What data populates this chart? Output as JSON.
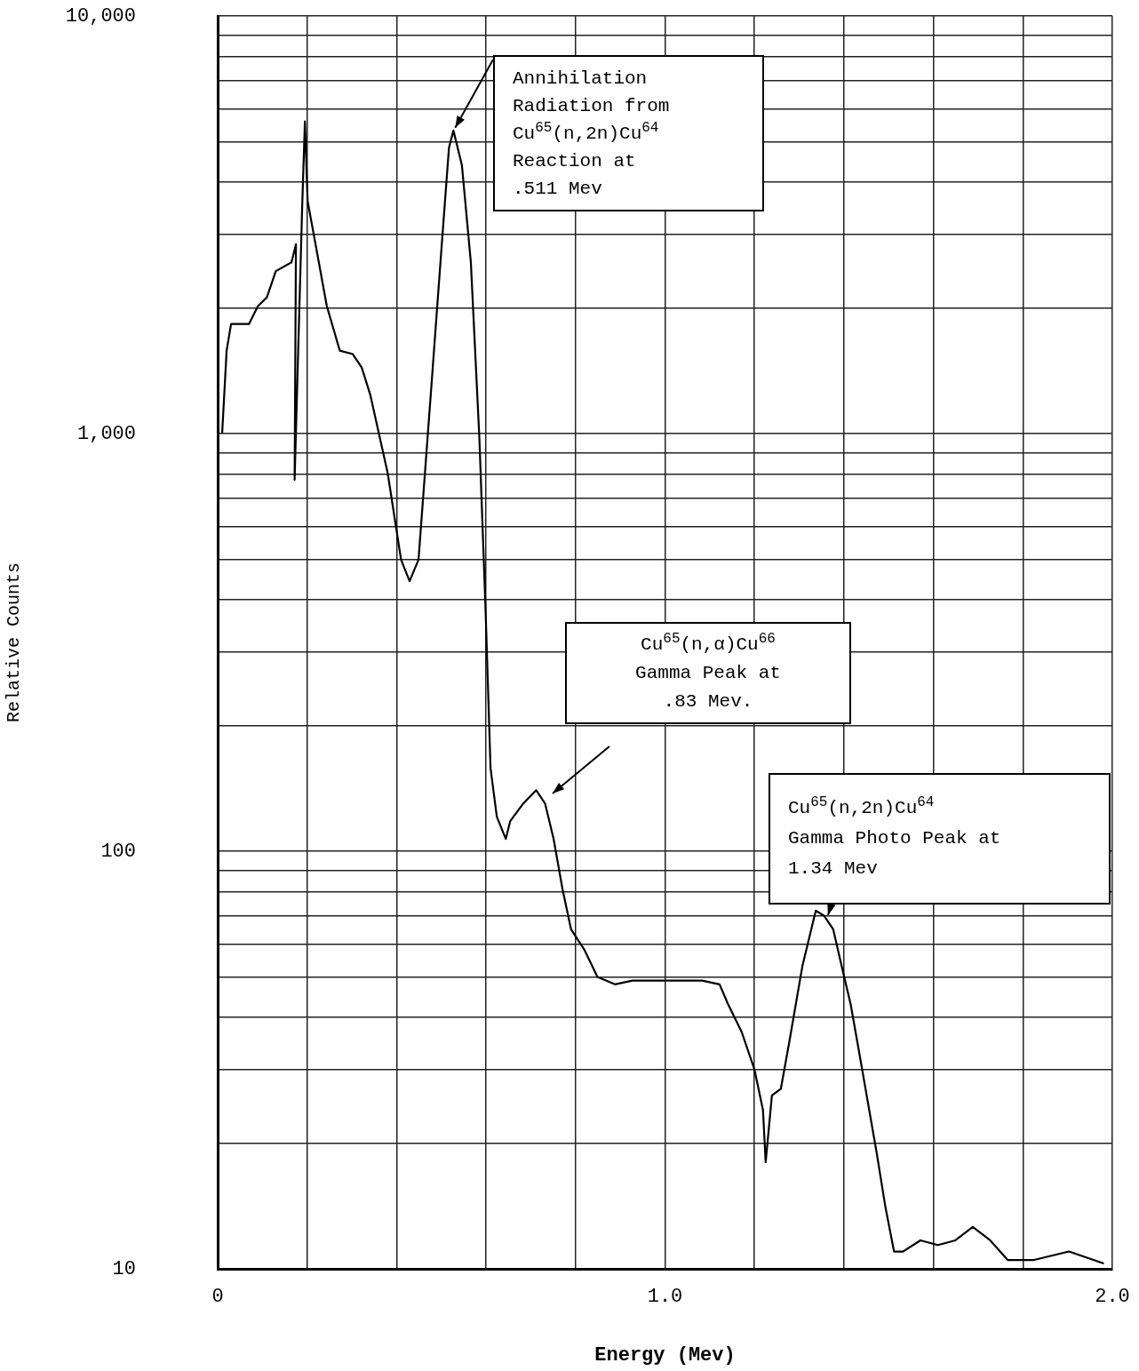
{
  "chart_data": {
    "type": "line",
    "xlabel": "Energy (Mev)",
    "ylabel": "Relative Counts",
    "log": "y",
    "grid": true,
    "marker": "none",
    "line_style": "solid",
    "xlim": [
      0,
      2.0
    ],
    "ylim": [
      10,
      10000
    ],
    "xticks": [
      0,
      {
        "value": 0.2,
        "label": null
      },
      {
        "value": 0.4,
        "label": null
      },
      {
        "value": 0.6,
        "label": null
      },
      {
        "value": 0.8,
        "label": null
      },
      {
        "value": 1.0,
        "label": "1.0"
      },
      {
        "value": 1.2,
        "label": null
      },
      {
        "value": 1.4,
        "label": null
      },
      {
        "value": 1.6,
        "label": null
      },
      {
        "value": 1.8,
        "label": null
      },
      {
        "value": 2.0,
        "label": "2.0"
      }
    ],
    "yticks": [
      10,
      {
        "value": 20,
        "label": null
      },
      {
        "value": 30,
        "label": null
      },
      {
        "value": 40,
        "label": null
      },
      {
        "value": 50,
        "label": null
      },
      {
        "value": 60,
        "label": null
      },
      {
        "value": 70,
        "label": null
      },
      {
        "value": 80,
        "label": null
      },
      {
        "value": 90,
        "label": null
      },
      100,
      {
        "value": 200,
        "label": null
      },
      {
        "value": 300,
        "label": null
      },
      {
        "value": 400,
        "label": null
      },
      {
        "value": 500,
        "label": null
      },
      {
        "value": 600,
        "label": null
      },
      {
        "value": 700,
        "label": null
      },
      {
        "value": 800,
        "label": null
      },
      {
        "value": 900,
        "label": null
      },
      {
        "value": 1000,
        "label": "1,000"
      },
      {
        "value": 2000,
        "label": null
      },
      {
        "value": 3000,
        "label": null
      },
      {
        "value": 4000,
        "label": null
      },
      {
        "value": 5000,
        "label": null
      },
      {
        "value": 6000,
        "label": null
      },
      {
        "value": 7000,
        "label": null
      },
      {
        "value": 8000,
        "label": null
      },
      {
        "value": 9000,
        "label": null
      },
      {
        "value": 10000,
        "label": "10,000"
      }
    ],
    "series": [
      {
        "color": "#000000",
        "x": [
          0.01,
          0.02,
          0.03,
          0.07,
          0.09,
          0.11,
          0.13,
          0.165,
          0.175,
          0.172,
          0.189,
          0.195,
          0.201,
          0.244,
          0.273,
          0.302,
          0.322,
          0.341,
          0.38,
          0.41,
          0.429,
          0.449,
          0.478,
          0.498,
          0.517,
          0.527,
          0.546,
          0.566,
          0.585,
          0.599,
          0.61,
          0.624,
          0.644,
          0.654,
          0.683,
          0.712,
          0.732,
          0.751,
          0.771,
          0.79,
          0.82,
          0.849,
          0.888,
          0.927,
          1.005,
          1.083,
          1.122,
          1.141,
          1.171,
          1.2,
          1.219,
          1.225,
          1.239,
          1.259,
          1.278,
          1.307,
          1.337,
          1.356,
          1.376,
          1.395,
          1.415,
          1.434,
          1.473,
          1.493,
          1.512,
          1.532,
          1.571,
          1.61,
          1.649,
          1.688,
          1.727,
          1.766,
          1.825,
          1.903,
          1.981
        ],
        "values": [
          1000,
          1580,
          1830,
          1830,
          2020,
          2120,
          2450,
          2570,
          2840,
          775,
          3520,
          5590,
          3610,
          2020,
          1580,
          1550,
          1440,
          1240,
          805,
          499,
          443,
          499,
          1310,
          2570,
          4830,
          5320,
          4390,
          2570,
          977,
          374,
          158,
          121,
          107,
          118,
          130,
          140,
          130,
          107,
          81,
          65,
          58,
          50,
          48,
          49,
          49,
          49,
          48,
          43,
          37,
          30,
          24,
          18,
          26,
          27,
          35,
          53,
          72,
          70,
          65,
          53,
          43,
          33,
          19,
          14,
          11,
          11,
          11.7,
          11.4,
          11.7,
          12.6,
          11.7,
          10.5,
          10.5,
          11,
          10.3
        ]
      }
    ],
    "annotations": [
      {
        "text": "Annihilation\nRadiation from\nCu$^{65}$(n,2n)Cu$^{64}$\nReaction at\n.511 Mev",
        "x": 0.527,
        "y": 5320
      },
      "Cu$^{65}$(n,α)Cu$^{66}$\nGamma Peak at\n.83 Mev.",
      "Cu$^{65}$(n,2n)Cu$^{64}$\nGamma Photo Peak at\n1.34 Mev"
    ]
  }
}
